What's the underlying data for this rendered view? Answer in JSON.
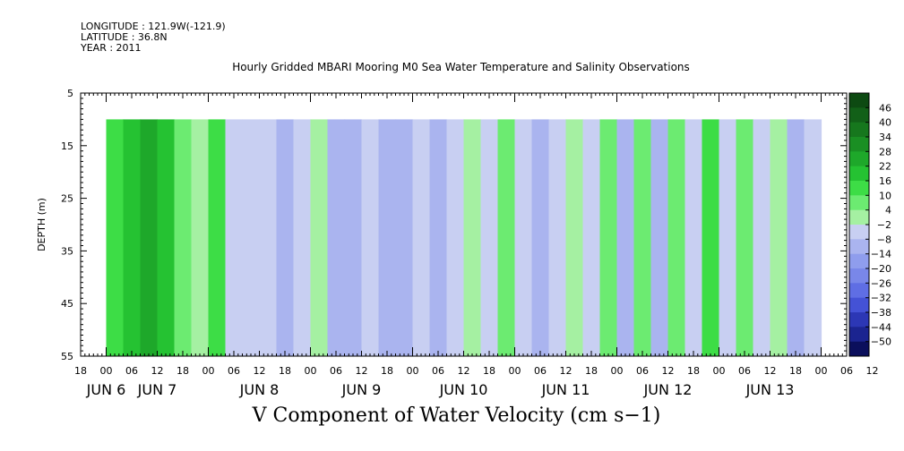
{
  "header": {
    "longitude": "LONGITUDE : 121.9W(-121.9)",
    "latitude": "LATITUDE : 36.8N",
    "year": "YEAR : 2011"
  },
  "chart_data": {
    "type": "heatmap",
    "title": "Hourly Gridded MBARI Mooring M0 Sea Water Temperature and Salinity Observations",
    "xlabel": "V Component of Water Velocity (cm s−1)",
    "ylabel": "DEPTH (m)",
    "ylim": [
      5,
      55
    ],
    "yticks": [
      "5",
      "15",
      "25",
      "35",
      "45",
      "55"
    ],
    "xlim_hours": [
      -6,
      174
    ],
    "hour_tick_labels": [
      "18",
      "00",
      "06",
      "12",
      "18",
      "00",
      "06",
      "12",
      "18",
      "00",
      "06",
      "12",
      "18",
      "00",
      "06",
      "12",
      "18",
      "00",
      "06",
      "12",
      "18",
      "00",
      "06",
      "12",
      "18",
      "00",
      "06",
      "12",
      "18",
      "00",
      "06",
      "12"
    ],
    "day_labels": [
      {
        "label": "JUN  6",
        "hour": 0
      },
      {
        "label": "JUN  7",
        "hour": 12
      },
      {
        "label": "JUN  8",
        "hour": 36
      },
      {
        "label": "JUN  9",
        "hour": 60
      },
      {
        "label": "JUN 10",
        "hour": 84
      },
      {
        "label": "JUN 11",
        "hour": 108
      },
      {
        "label": "JUN 12",
        "hour": 132
      },
      {
        "label": "JUN 13",
        "hour": 156
      }
    ],
    "data_depth_range": [
      10,
      55
    ],
    "data_hour_range": [
      0,
      168
    ],
    "colorbar_levels": [
      46,
      40,
      34,
      28,
      22,
      16,
      10,
      4,
      -2,
      -8,
      -14,
      -20,
      -26,
      -32,
      -38,
      -44,
      -50
    ],
    "colorbar_labels": [
      "46",
      "40",
      "34",
      "28",
      "22",
      "16",
      "10",
      "4",
      "−2",
      "−8",
      "−14",
      "−20",
      "−26",
      "−32",
      "−38",
      "−44",
      "−50"
    ],
    "colorbar_colors": [
      "#0d4a12",
      "#126018",
      "#16771d",
      "#1a8f23",
      "#1ea82a",
      "#25c232",
      "#3ddd46",
      "#6ceb71",
      "#a5f0a2",
      "#c8cff2",
      "#aab4ef",
      "#8f9ded",
      "#7987e9",
      "#5f6ee4",
      "#4452d6",
      "#2c37b5",
      "#1b2490",
      "#0b0f5c"
    ],
    "bands": [
      {
        "hour": 2,
        "value": 14
      },
      {
        "hour": 6,
        "value": 18
      },
      {
        "hour": 10,
        "value": 22
      },
      {
        "hour": 14,
        "value": 20
      },
      {
        "hour": 18,
        "value": 8
      },
      {
        "hour": 22,
        "value": 2
      },
      {
        "hour": 26,
        "value": 10
      },
      {
        "hour": 30,
        "value": -6
      },
      {
        "hour": 34,
        "value": -8
      },
      {
        "hour": 38,
        "value": -4
      },
      {
        "hour": 42,
        "value": -10
      },
      {
        "hour": 46,
        "value": -8
      },
      {
        "hour": 50,
        "value": 2
      },
      {
        "hour": 54,
        "value": -10
      },
      {
        "hour": 58,
        "value": -12
      },
      {
        "hour": 62,
        "value": -8
      },
      {
        "hour": 66,
        "value": -10
      },
      {
        "hour": 70,
        "value": -14
      },
      {
        "hour": 74,
        "value": -6
      },
      {
        "hour": 78,
        "value": -10
      },
      {
        "hour": 82,
        "value": -4
      },
      {
        "hour": 86,
        "value": 2
      },
      {
        "hour": 90,
        "value": -8
      },
      {
        "hour": 94,
        "value": 6
      },
      {
        "hour": 98,
        "value": -6
      },
      {
        "hour": 102,
        "value": -14
      },
      {
        "hour": 106,
        "value": -8
      },
      {
        "hour": 110,
        "value": 2
      },
      {
        "hour": 114,
        "value": -4
      },
      {
        "hour": 118,
        "value": 6
      },
      {
        "hour": 122,
        "value": -12
      },
      {
        "hour": 126,
        "value": 4
      },
      {
        "hour": 130,
        "value": -10
      },
      {
        "hour": 134,
        "value": 6
      },
      {
        "hour": 138,
        "value": -8
      },
      {
        "hour": 142,
        "value": 10
      },
      {
        "hour": 146,
        "value": -4
      },
      {
        "hour": 150,
        "value": 4
      },
      {
        "hour": 154,
        "value": -8
      },
      {
        "hour": 158,
        "value": -2
      },
      {
        "hour": 162,
        "value": -10
      },
      {
        "hour": 166,
        "value": -6
      }
    ]
  }
}
